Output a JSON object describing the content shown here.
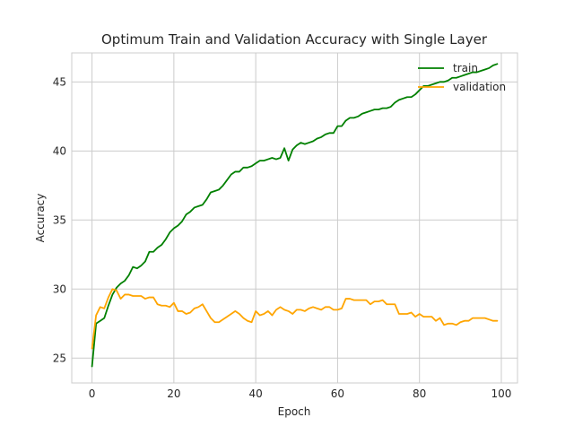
{
  "chart_data": {
    "type": "line",
    "title": "Optimum Train and Validation Accuracy with Single Layer",
    "xlabel": "Epoch",
    "ylabel": "Accuracy",
    "xlim": [
      -4.95,
      103.95
    ],
    "ylim": [
      23.2,
      47.1
    ],
    "xticks": [
      0,
      20,
      40,
      60,
      80,
      100
    ],
    "yticks": [
      25,
      30,
      35,
      40,
      45
    ],
    "xtick_labels": [
      "0",
      "20",
      "40",
      "60",
      "80",
      "100"
    ],
    "ytick_labels": [
      "25",
      "30",
      "35",
      "40",
      "45"
    ],
    "grid": true,
    "legend_position": "top-right",
    "series": [
      {
        "name": "train",
        "color": "#008000",
        "values": [
          24.4,
          27.5,
          27.7,
          27.9,
          28.8,
          29.6,
          30.1,
          30.4,
          30.6,
          31.0,
          31.6,
          31.5,
          31.7,
          32.0,
          32.7,
          32.7,
          33.0,
          33.2,
          33.6,
          34.1,
          34.4,
          34.6,
          34.9,
          35.4,
          35.6,
          35.9,
          36.0,
          36.1,
          36.5,
          37.0,
          37.1,
          37.2,
          37.5,
          37.9,
          38.3,
          38.5,
          38.5,
          38.8,
          38.8,
          38.9,
          39.1,
          39.3,
          39.3,
          39.4,
          39.5,
          39.4,
          39.5,
          40.2,
          39.3,
          40.1,
          40.4,
          40.6,
          40.5,
          40.6,
          40.7,
          40.9,
          41.0,
          41.2,
          41.3,
          41.3,
          41.8,
          41.8,
          42.2,
          42.4,
          42.4,
          42.5,
          42.7,
          42.8,
          42.9,
          43.0,
          43.0,
          43.1,
          43.1,
          43.2,
          43.5,
          43.7,
          43.8,
          43.9,
          43.9,
          44.1,
          44.4,
          44.7,
          44.7,
          44.8,
          44.9,
          45.0,
          45.0,
          45.1,
          45.3,
          45.3,
          45.4,
          45.5,
          45.6,
          45.7,
          45.7,
          45.8,
          45.9,
          46.0,
          46.2,
          46.3
        ]
      },
      {
        "name": "validation",
        "color": "#FFA500",
        "values": [
          25.7,
          28.1,
          28.7,
          28.6,
          29.4,
          30.0,
          29.9,
          29.3,
          29.6,
          29.6,
          29.5,
          29.5,
          29.5,
          29.3,
          29.4,
          29.4,
          28.9,
          28.8,
          28.8,
          28.7,
          29.0,
          28.4,
          28.4,
          28.2,
          28.3,
          28.6,
          28.7,
          28.9,
          28.4,
          27.9,
          27.6,
          27.6,
          27.8,
          28.0,
          28.2,
          28.4,
          28.2,
          27.9,
          27.7,
          27.6,
          28.4,
          28.1,
          28.2,
          28.4,
          28.1,
          28.5,
          28.7,
          28.5,
          28.4,
          28.2,
          28.5,
          28.5,
          28.4,
          28.6,
          28.7,
          28.6,
          28.5,
          28.7,
          28.7,
          28.5,
          28.5,
          28.6,
          29.3,
          29.3,
          29.2,
          29.2,
          29.2,
          29.2,
          28.9,
          29.1,
          29.1,
          29.2,
          28.9,
          28.9,
          28.9,
          28.2,
          28.2,
          28.2,
          28.3,
          28.0,
          28.2,
          28.0,
          28.0,
          28.0,
          27.7,
          27.9,
          27.4,
          27.5,
          27.5,
          27.4,
          27.6,
          27.7,
          27.7,
          27.9,
          27.9,
          27.9,
          27.9,
          27.8,
          27.7,
          27.7
        ]
      }
    ]
  }
}
